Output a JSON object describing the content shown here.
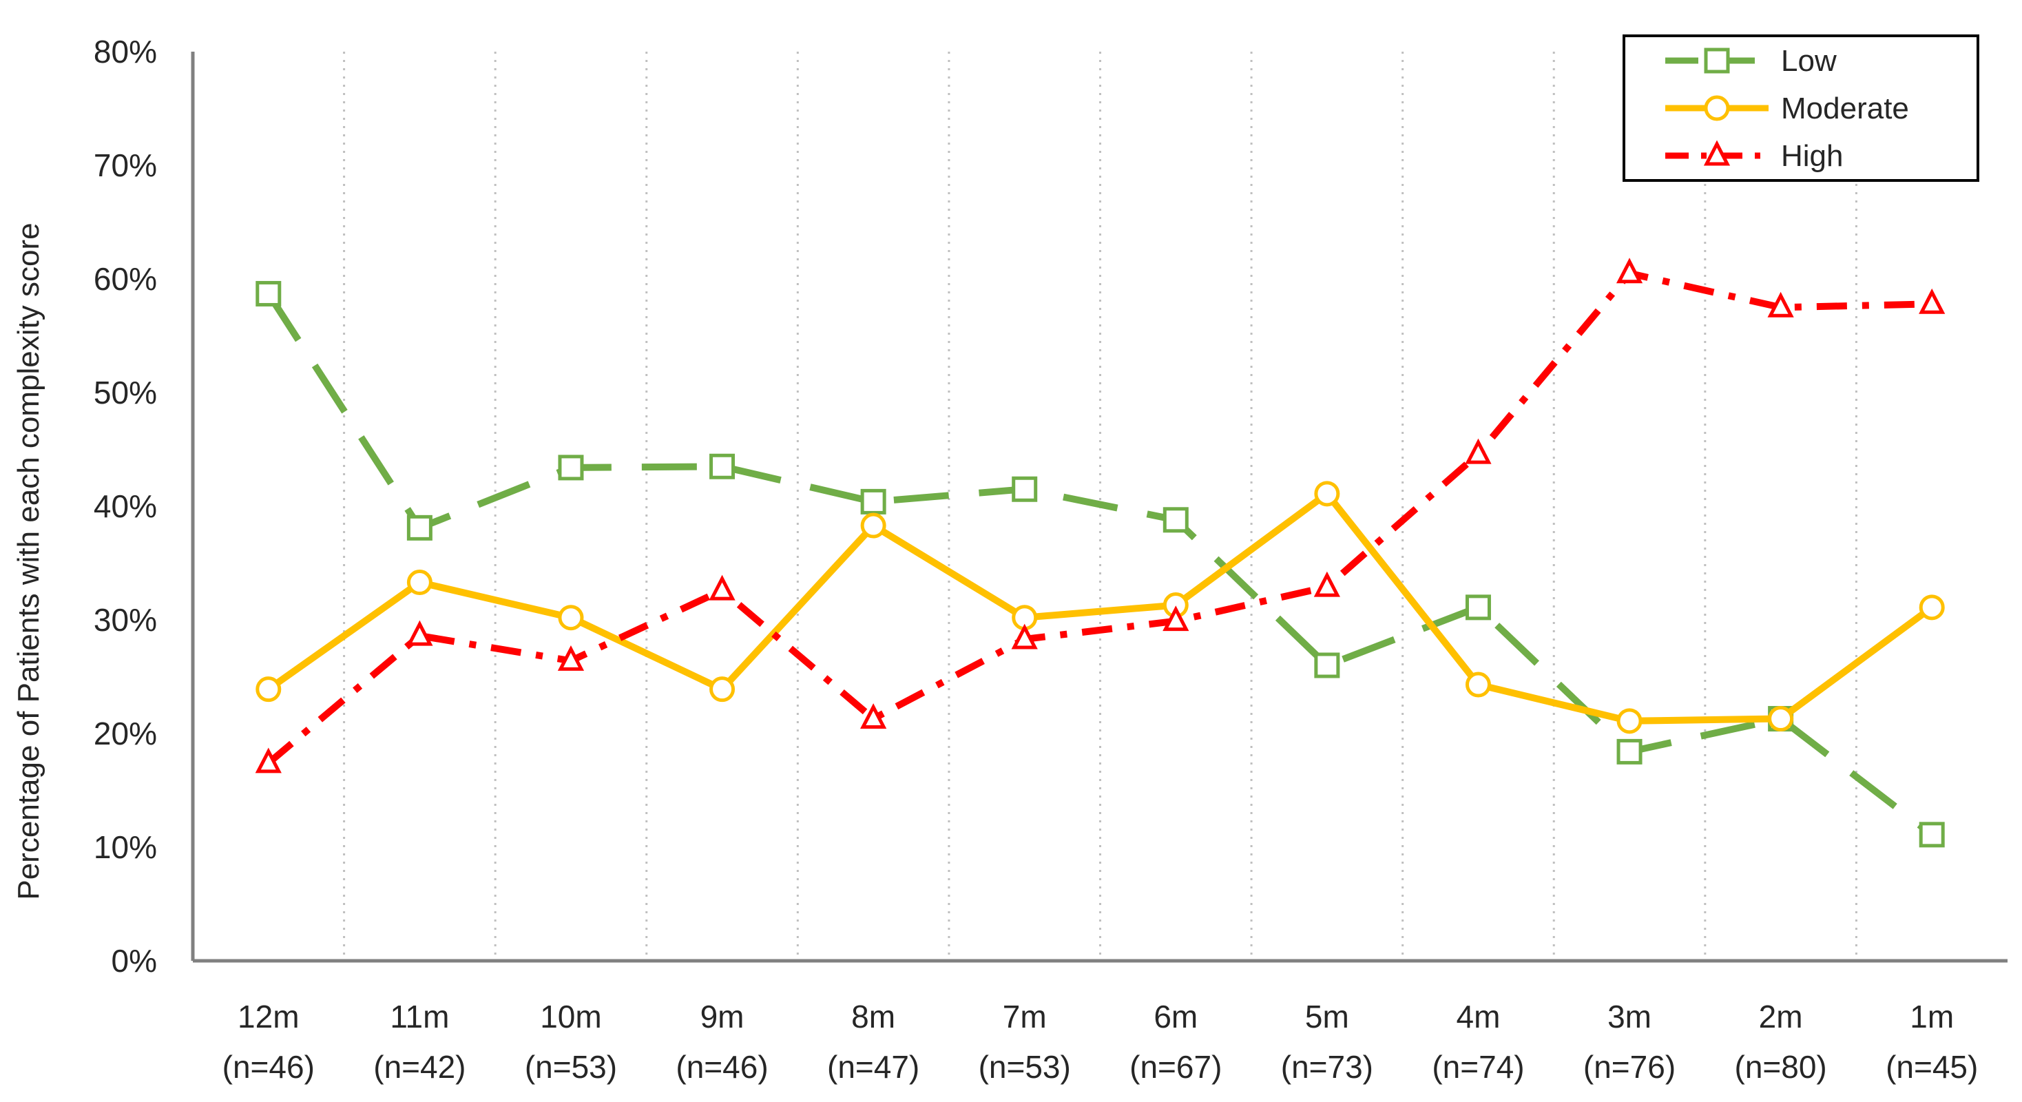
{
  "chart_data": {
    "type": "line",
    "title": "",
    "xlabel": "",
    "ylabel": "Percentage of Patients with each complexity score",
    "ylim": [
      0,
      80
    ],
    "yticks": [
      "0%",
      "10%",
      "20%",
      "30%",
      "40%",
      "50%",
      "60%",
      "70%",
      "80%"
    ],
    "categories": [
      {
        "month": "12m",
        "n": "(n=46)"
      },
      {
        "month": "11m",
        "n": "(n=42)"
      },
      {
        "month": "10m",
        "n": "(n=53)"
      },
      {
        "month": "9m",
        "n": "(n=46)"
      },
      {
        "month": "8m",
        "n": "(n=47)"
      },
      {
        "month": "7m",
        "n": "(n=53)"
      },
      {
        "month": "6m",
        "n": "(n=67)"
      },
      {
        "month": "5m",
        "n": "(n=73)"
      },
      {
        "month": "4m",
        "n": "(n=74)"
      },
      {
        "month": "3m",
        "n": "(n=76)"
      },
      {
        "month": "2m",
        "n": "(n=80)"
      },
      {
        "month": "1m",
        "n": "(n=45)"
      }
    ],
    "series": [
      {
        "name": "Low",
        "color": "#70AD47",
        "marker": "square",
        "dash": "long-dash",
        "values": [
          58.7,
          38.1,
          43.4,
          43.5,
          40.4,
          41.5,
          38.8,
          26.0,
          31.1,
          18.4,
          21.3,
          11.1
        ]
      },
      {
        "name": "Moderate",
        "color": "#FFC000",
        "marker": "circle",
        "dash": "solid",
        "values": [
          23.9,
          33.3,
          30.2,
          23.9,
          38.3,
          30.2,
          31.3,
          41.1,
          24.3,
          21.1,
          21.3,
          31.1
        ]
      },
      {
        "name": "High",
        "color": "#FF0000",
        "marker": "triangle",
        "dash": "dash-dot",
        "values": [
          17.4,
          28.6,
          26.4,
          32.6,
          21.3,
          28.3,
          29.9,
          32.9,
          44.6,
          60.5,
          57.5,
          57.8
        ]
      }
    ],
    "legend_position": "top-right",
    "grid": "vertical-dotted"
  }
}
